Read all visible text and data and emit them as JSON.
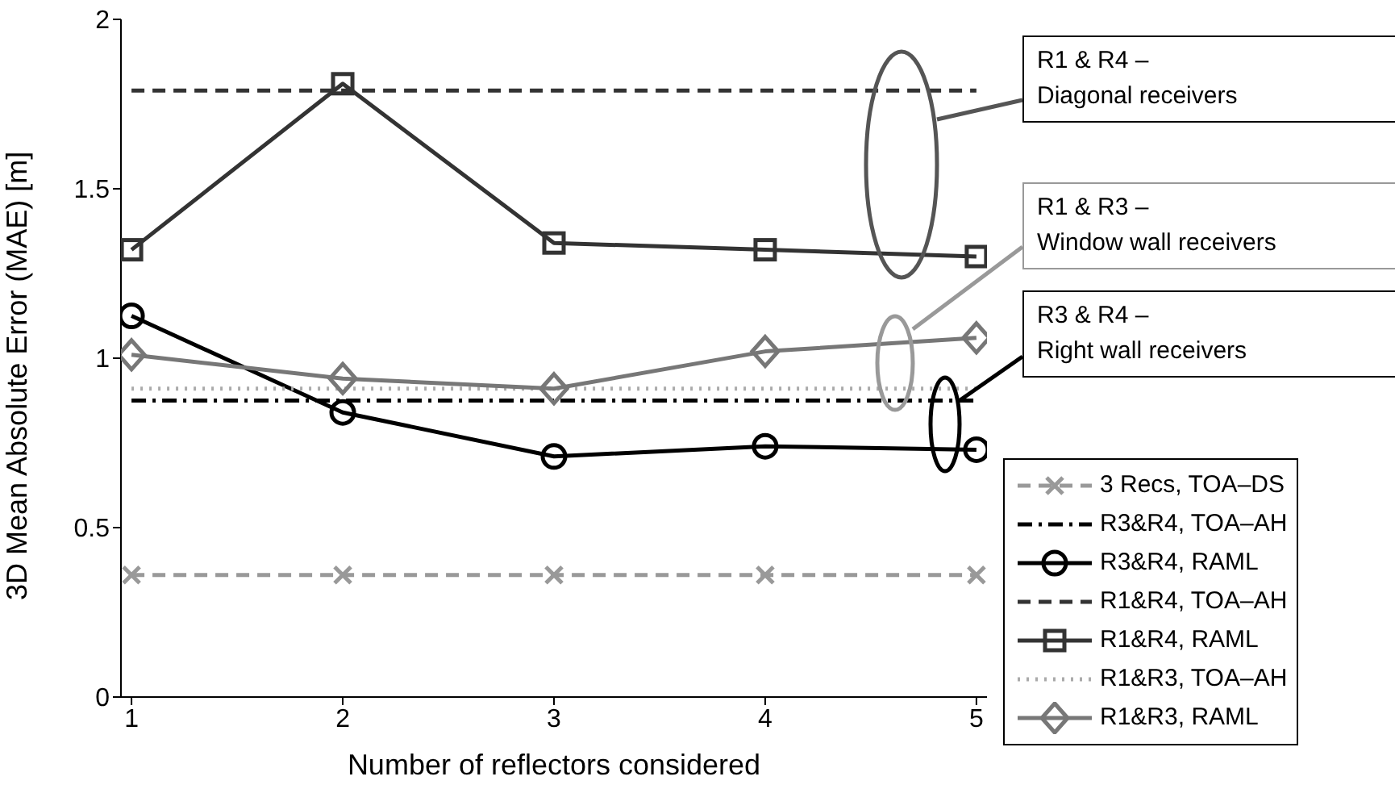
{
  "chart_data": {
    "type": "line",
    "xlabel": "Number of reflectors considered",
    "ylabel": "3D Mean Absolute Error (MAE) [m]",
    "x": [
      1,
      2,
      3,
      4,
      5
    ],
    "xlim": [
      0.95,
      5.05
    ],
    "xticks": [
      1,
      2,
      3,
      4,
      5
    ],
    "ylim": [
      0,
      2
    ],
    "yticks": [
      0,
      0.5,
      1,
      1.5,
      2
    ],
    "grid": false,
    "legend": "right",
    "series": [
      {
        "name": "3 Recs, TOA–DS",
        "color": "#999999",
        "values": [
          0.36,
          0.36,
          0.36,
          0.36,
          0.36
        ],
        "line_style": "dashed",
        "marker": "cross"
      },
      {
        "name": "R3&R4, TOA–AH",
        "color": "#000000",
        "values": [
          0.875,
          0.875,
          0.875,
          0.875,
          0.875
        ],
        "line_style": "dashdot",
        "marker": "none"
      },
      {
        "name": "R3&R4, RAML",
        "color": "#000000",
        "values": [
          1.125,
          0.84,
          0.71,
          0.74,
          0.73
        ],
        "line_style": "solid",
        "marker": "circle"
      },
      {
        "name": "R1&R4, TOA–AH",
        "color": "#333333",
        "values": [
          1.79,
          1.79,
          1.79,
          1.79,
          1.79
        ],
        "line_style": "dashed",
        "marker": "none"
      },
      {
        "name": "R1&R4, RAML",
        "color": "#333333",
        "values": [
          1.32,
          1.81,
          1.34,
          1.32,
          1.3
        ],
        "line_style": "solid",
        "marker": "square"
      },
      {
        "name": "R1&R3, TOA–AH",
        "color": "#aaaaaa",
        "values": [
          0.91,
          0.91,
          0.91,
          0.91,
          0.91
        ],
        "line_style": "dotted",
        "marker": "none"
      },
      {
        "name": "R1&R3, RAML",
        "color": "#777777",
        "values": [
          1.01,
          0.94,
          0.91,
          1.02,
          1.06
        ],
        "line_style": "solid",
        "marker": "diamond"
      }
    ],
    "annotations": [
      "R1 & R4 –\nDiagonal receivers",
      "R1 & R3 –\nWindow wall receivers",
      {
        "text": "R3 & R4 –\nRight wall receivers",
        "x": 4.92,
        "y": 0.875
      }
    ]
  }
}
